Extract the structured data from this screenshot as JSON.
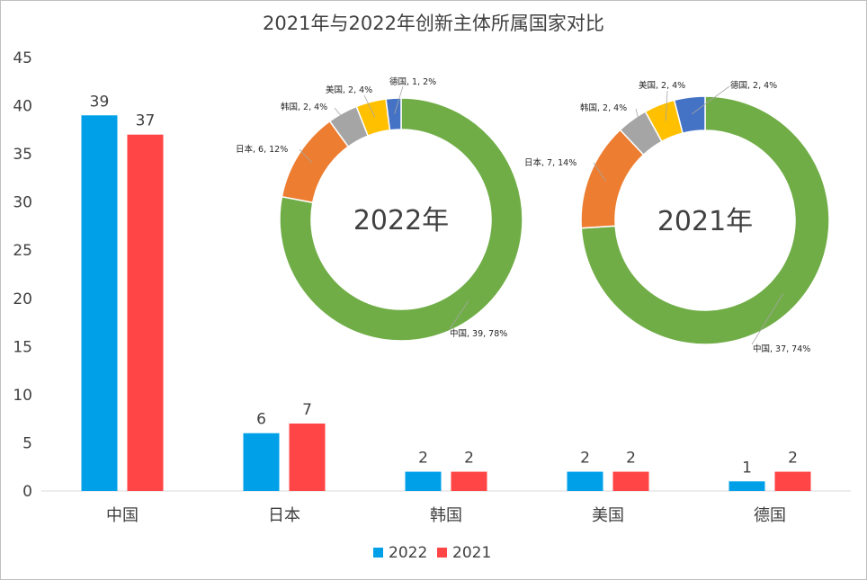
{
  "chart_data": [
    {
      "type": "bar",
      "title": "2021年与2022年创新主体所属国家对比",
      "categories": [
        "中国",
        "日本",
        "韩国",
        "美国",
        "德国"
      ],
      "ylim": [
        0,
        45
      ],
      "yticks": [
        0,
        5,
        10,
        15,
        20,
        25,
        30,
        35,
        40,
        45
      ],
      "grid": false,
      "legend_position": "bottom",
      "series": [
        {
          "name": "2022",
          "color": "#00A0E9",
          "values": [
            39,
            6,
            2,
            2,
            1
          ]
        },
        {
          "name": "2021",
          "color": "#FF4545",
          "values": [
            37,
            7,
            2,
            2,
            2
          ]
        }
      ]
    },
    {
      "type": "pie",
      "center_label": "2022年",
      "slices": [
        {
          "name": "中国",
          "value": 39,
          "percent": "78%",
          "color": "#70AD47",
          "label": "中国, 39, 78%"
        },
        {
          "name": "日本",
          "value": 6,
          "percent": "12%",
          "color": "#ED7D31",
          "label": "日本, 6, 12%"
        },
        {
          "name": "韩国",
          "value": 2,
          "percent": "4%",
          "color": "#A5A5A5",
          "label": "韩国, 2, 4%"
        },
        {
          "name": "美国",
          "value": 2,
          "percent": "4%",
          "color": "#FFC000",
          "label": "美国, 2, 4%"
        },
        {
          "name": "德国",
          "value": 1,
          "percent": "2%",
          "color": "#4472C4",
          "label": "德国, 1, 2%"
        }
      ]
    },
    {
      "type": "pie",
      "center_label": "2021年",
      "slices": [
        {
          "name": "中国",
          "value": 37,
          "percent": "74%",
          "color": "#70AD47",
          "label": "中国, 37, 74%"
        },
        {
          "name": "日本",
          "value": 7,
          "percent": "14%",
          "color": "#ED7D31",
          "label": "日本, 7, 14%"
        },
        {
          "name": "韩国",
          "value": 2,
          "percent": "4%",
          "color": "#A5A5A5",
          "label": "韩国, 2, 4%"
        },
        {
          "name": "美国",
          "value": 2,
          "percent": "4%",
          "color": "#FFC000",
          "label": "美国, 2, 4%"
        },
        {
          "name": "德国",
          "value": 2,
          "percent": "4%",
          "color": "#4472C4",
          "label": "德国, 2, 4%"
        }
      ]
    }
  ]
}
